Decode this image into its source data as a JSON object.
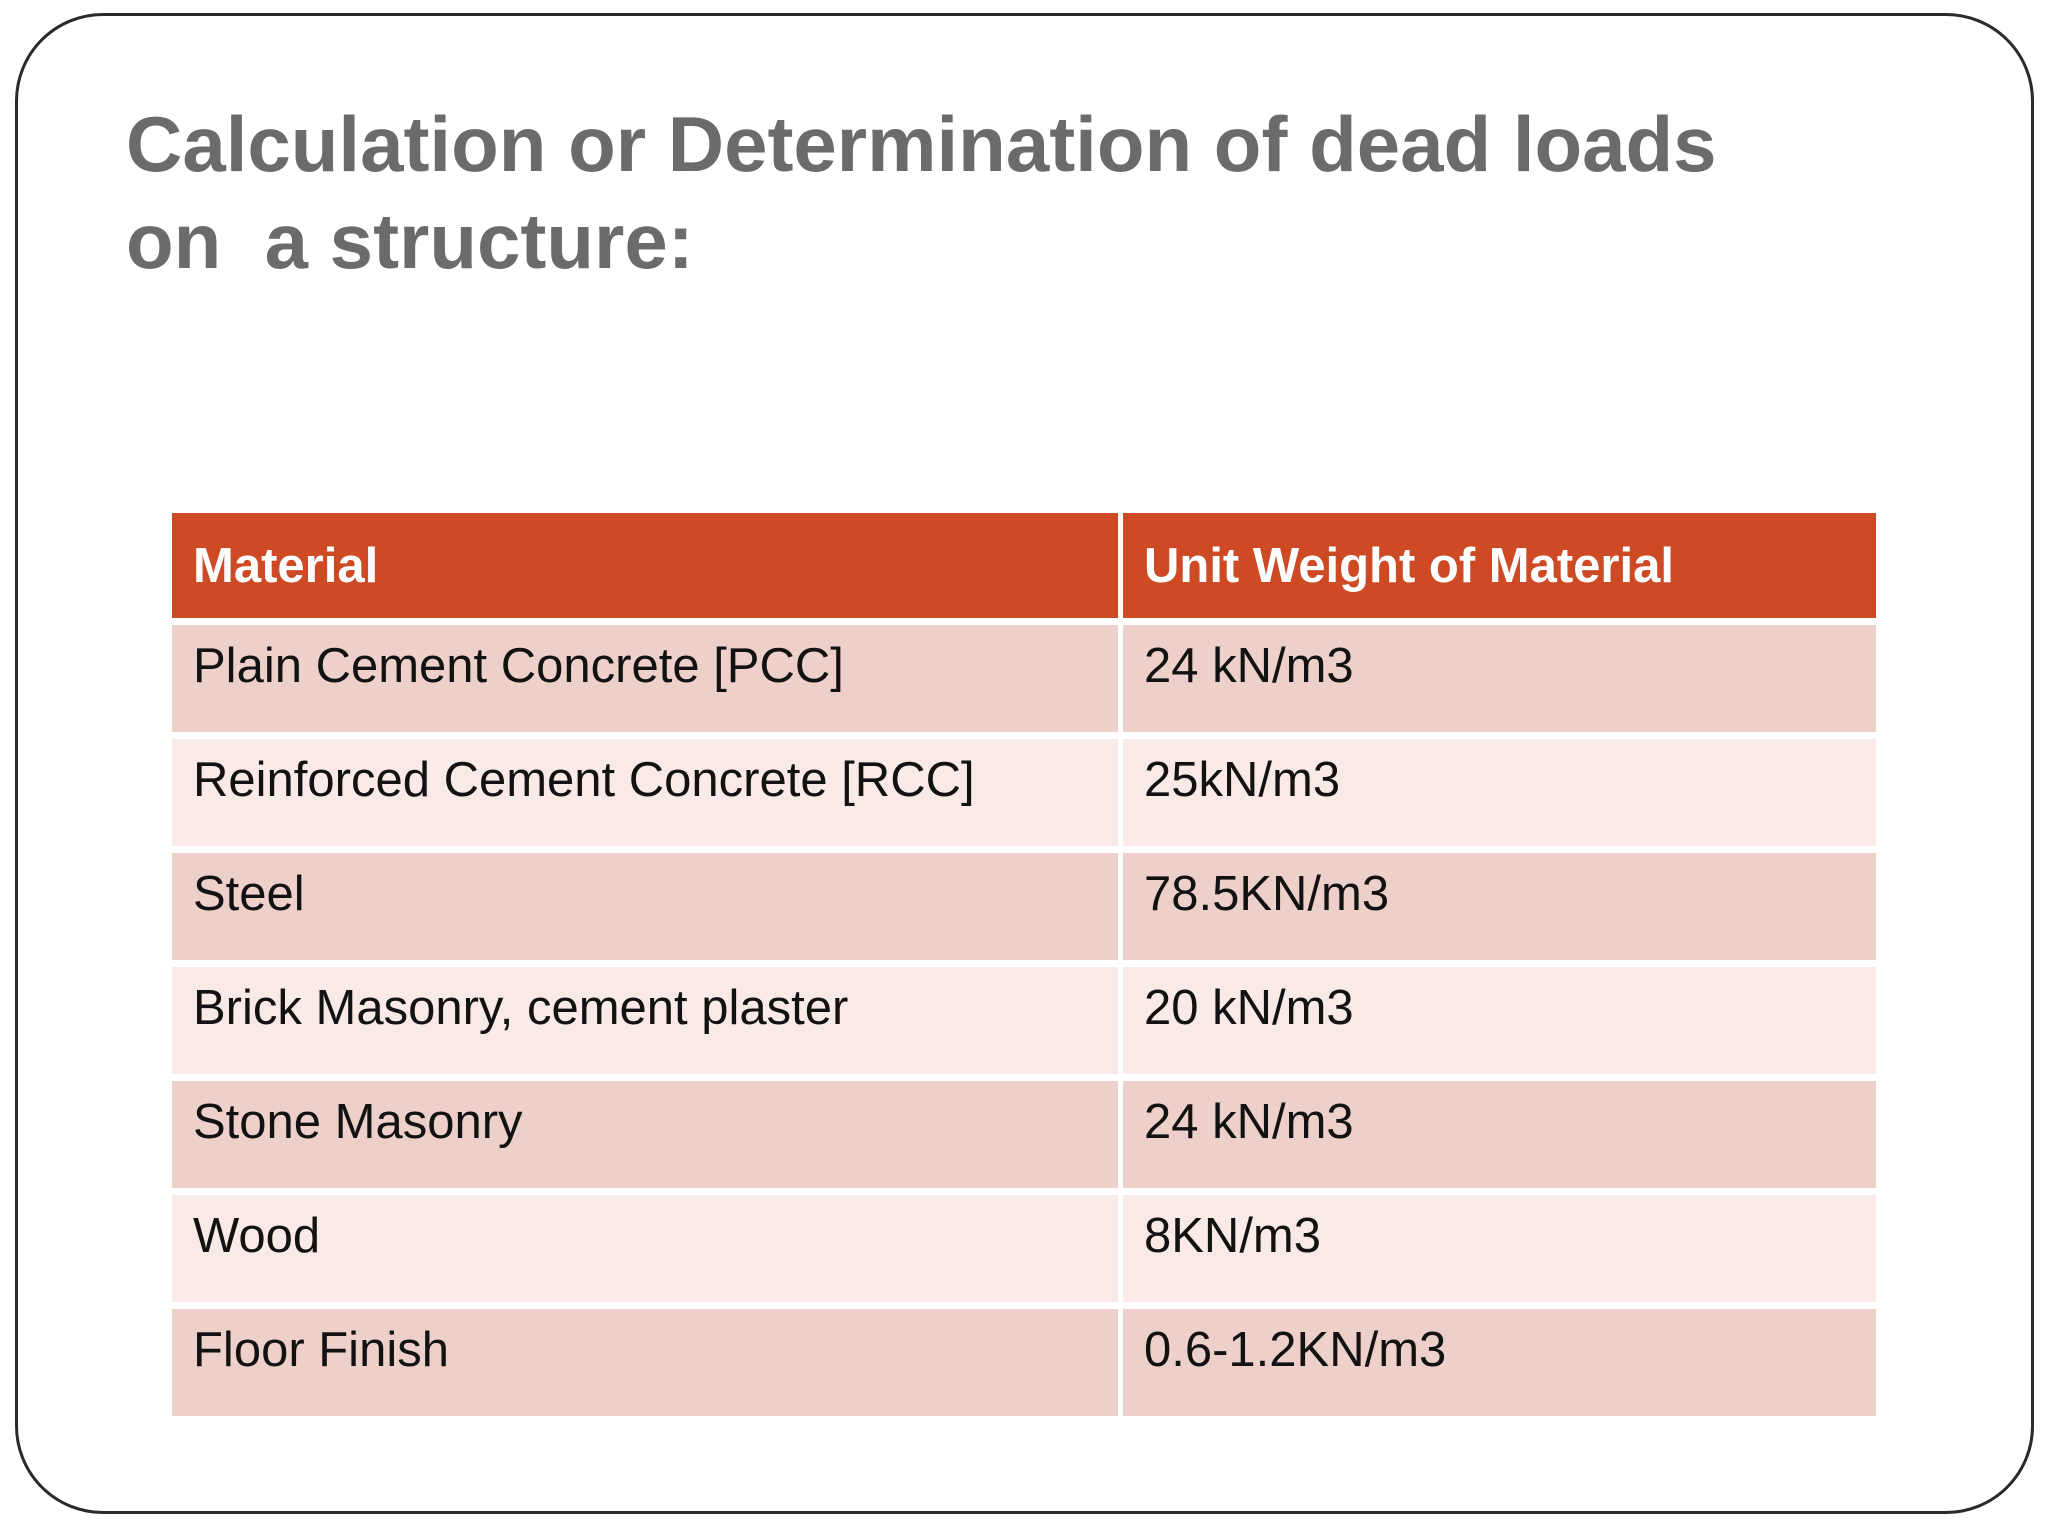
{
  "slide": {
    "title": "Calculation or Determination of dead loads\non  a structure:",
    "colors": {
      "title_text": "#6b6b6b",
      "frame_border": "#2a2a2a",
      "table_header_bg": "#cd4a24",
      "table_header_text": "#ffffff",
      "table_row_dark": "#eed0ca",
      "table_row_light": "#f9eae7",
      "table_cell_text": "#121212"
    },
    "table": {
      "headers": [
        "Material",
        "Unit Weight of Material"
      ],
      "rows": [
        {
          "material": "Plain Cement Concrete [PCC]",
          "weight": "24 kN/m3"
        },
        {
          "material": "Reinforced Cement Concrete [RCC]",
          "weight": "25kN/m3"
        },
        {
          "material": "Steel",
          "weight": "78.5KN/m3"
        },
        {
          "material": "Brick Masonry, cement plaster",
          "weight": "20 kN/m3"
        },
        {
          "material": "Stone Masonry",
          "weight": "24 kN/m3"
        },
        {
          "material": "Wood",
          "weight": "8KN/m3"
        },
        {
          "material": "Floor Finish",
          "weight": "0.6-1.2KN/m3"
        }
      ]
    }
  }
}
